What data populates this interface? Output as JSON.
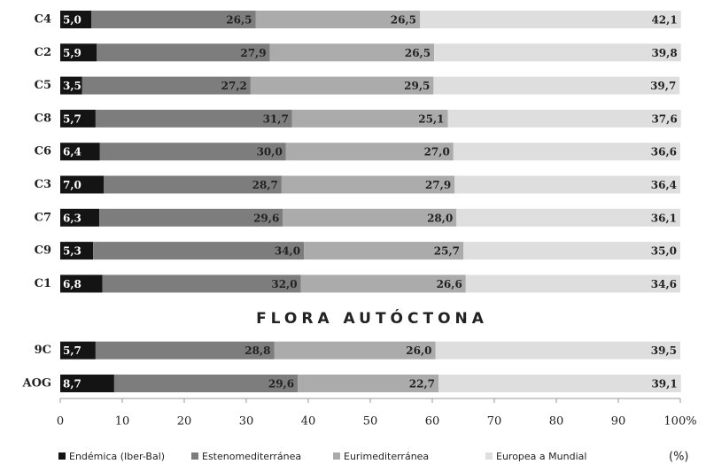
{
  "chart_data": {
    "type": "stacked_barh",
    "categories": [
      "C4",
      "C2",
      "C5",
      "C8",
      "C6",
      "C3",
      "C7",
      "C9",
      "C1",
      "9C",
      "AOG"
    ],
    "series": [
      {
        "name": "Endémica (Iber-Bal)",
        "color": "#141414",
        "values": [
          5.0,
          5.9,
          3.5,
          5.7,
          6.4,
          7.0,
          6.3,
          5.3,
          6.8,
          5.7,
          8.7
        ],
        "value_labels": [
          "5,0",
          "5,9",
          "3,5",
          "5,7",
          "6,4",
          "7,0",
          "6,3",
          "5,3",
          "6,8",
          "5,7",
          "8,7"
        ]
      },
      {
        "name": "Estenomediterránea",
        "color": "#7d7d7d",
        "values": [
          26.5,
          27.9,
          27.2,
          31.7,
          30.0,
          28.7,
          29.6,
          34.0,
          32.0,
          28.8,
          29.6
        ],
        "value_labels": [
          "26,5",
          "27,9",
          "27,2",
          "31,7",
          "30,0",
          "28,7",
          "29,6",
          "34,0",
          "32,0",
          "28,8",
          "29,6"
        ]
      },
      {
        "name": "Eurimediterránea",
        "color": "#ababab",
        "values": [
          26.5,
          26.5,
          29.5,
          25.1,
          27.0,
          27.9,
          28.0,
          25.7,
          26.6,
          26.0,
          22.7
        ],
        "value_labels": [
          "26,5",
          "26,5",
          "29,5",
          "25,1",
          "27,0",
          "27,9",
          "28,0",
          "25,7",
          "26,6",
          "26,0",
          "22,7"
        ]
      },
      {
        "name": "Europea a Mundial",
        "color": "#dedede",
        "values": [
          42.1,
          39.8,
          39.7,
          37.6,
          36.6,
          36.4,
          36.1,
          35.0,
          34.6,
          39.5,
          39.1
        ],
        "value_labels": [
          "42,1",
          "39,8",
          "39,7",
          "37,6",
          "36,6",
          "36,4",
          "36,1",
          "35,0",
          "34,6",
          "39,5",
          "39,1"
        ]
      }
    ],
    "annotation": "FLORA AUTÓCTONA",
    "xlabel": "(%)",
    "xlim": [
      0,
      100
    ],
    "xticks": [
      0,
      10,
      20,
      30,
      40,
      50,
      60,
      70,
      80,
      90,
      {
        "value": 100,
        "label": "100%"
      }
    ],
    "legend": "bottom"
  }
}
